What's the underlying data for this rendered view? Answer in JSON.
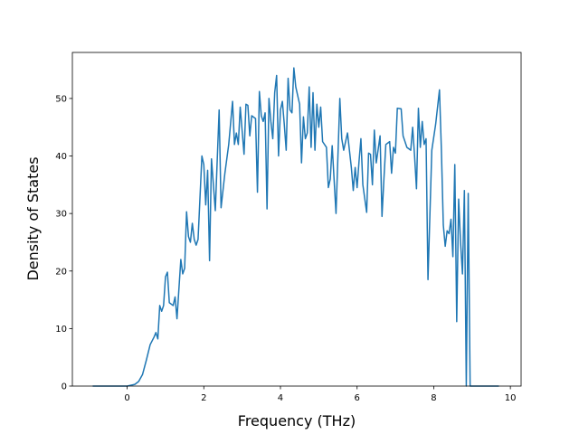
{
  "chart_data": {
    "type": "line",
    "x_label": "Frequency (THz)",
    "y_label": "Density of States",
    "xlim": [
      -1.43,
      10.28
    ],
    "ylim": [
      0,
      58
    ],
    "xticks": [
      0,
      2,
      4,
      6,
      8,
      10
    ],
    "yticks": [
      0,
      10,
      20,
      30,
      40,
      50
    ],
    "series": [
      {
        "color": "#1f77b4",
        "x": [
          -0.9,
          0,
          0.2,
          0.3,
          0.4,
          0.5,
          0.6,
          0.7,
          0.75,
          0.8,
          0.85,
          0.9,
          0.95,
          1.0,
          1.05,
          1.1,
          1.2,
          1.25,
          1.3,
          1.4,
          1.45,
          1.5,
          1.55,
          1.6,
          1.65,
          1.7,
          1.75,
          1.8,
          1.85,
          1.95,
          2.0,
          2.05,
          2.1,
          2.15,
          2.2,
          2.3,
          2.4,
          2.45,
          2.55,
          2.65,
          2.75,
          2.8,
          2.85,
          2.9,
          2.95,
          3.05,
          3.1,
          3.15,
          3.2,
          3.25,
          3.35,
          3.4,
          3.45,
          3.5,
          3.55,
          3.6,
          3.65,
          3.7,
          3.75,
          3.8,
          3.85,
          3.9,
          3.95,
          4.0,
          4.05,
          4.1,
          4.15,
          4.2,
          4.25,
          4.3,
          4.35,
          4.4,
          4.5,
          4.55,
          4.6,
          4.65,
          4.7,
          4.75,
          4.8,
          4.85,
          4.9,
          4.95,
          5.0,
          5.05,
          5.1,
          5.2,
          5.25,
          5.3,
          5.35,
          5.45,
          5.55,
          5.6,
          5.65,
          5.75,
          5.85,
          5.9,
          5.95,
          6.0,
          6.05,
          6.1,
          6.15,
          6.25,
          6.3,
          6.35,
          6.4,
          6.45,
          6.5,
          6.6,
          6.65,
          6.7,
          6.75,
          6.85,
          6.9,
          6.95,
          7.0,
          7.05,
          7.15,
          7.2,
          7.3,
          7.4,
          7.45,
          7.5,
          7.55,
          7.6,
          7.65,
          7.7,
          7.75,
          7.8,
          7.85,
          7.95,
          8.05,
          8.15,
          8.2,
          8.25,
          8.3,
          8.35,
          8.4,
          8.45,
          8.5,
          8.55,
          8.6,
          8.65,
          8.7,
          8.75,
          8.8,
          8.85,
          8.9,
          8.95,
          9.7
        ],
        "values": [
          0,
          0,
          0.3,
          0.8,
          2,
          4.5,
          7.2,
          8.5,
          9.3,
          8.2,
          14,
          13,
          14,
          19,
          19.8,
          14.5,
          14,
          15.5,
          11.7,
          22,
          19.5,
          20.5,
          30.3,
          26,
          25,
          28.3,
          25.5,
          24.5,
          25.5,
          40,
          38.5,
          31.5,
          37.5,
          21.8,
          39.5,
          30.5,
          48,
          31,
          37,
          42,
          49.5,
          42,
          44,
          42,
          48.5,
          40.3,
          49,
          48.8,
          43.5,
          47,
          46.5,
          33.7,
          51.2,
          47,
          46,
          47.5,
          30.8,
          50,
          46,
          43,
          51,
          54,
          40,
          48,
          49.5,
          45.5,
          41,
          53.5,
          48,
          47.5,
          55.3,
          52,
          49,
          38.8,
          46.8,
          43,
          44,
          52,
          41.5,
          51,
          41,
          49,
          45,
          48.5,
          42.5,
          41.5,
          34.5,
          36,
          41.8,
          30,
          50,
          43,
          41,
          44,
          38,
          34,
          38,
          34.5,
          39,
          43,
          35,
          30.2,
          40.5,
          40.3,
          35,
          44.5,
          38.8,
          43.5,
          29.5,
          36,
          42,
          42.5,
          37,
          41.5,
          40.5,
          48.3,
          48.2,
          43.5,
          41.5,
          41,
          45,
          40,
          34.3,
          48.3,
          41.5,
          46,
          42,
          43,
          18.5,
          41,
          45.5,
          51.5,
          41,
          28,
          24.3,
          27,
          26.5,
          29,
          22.5,
          38.5,
          11.2,
          32.5,
          25,
          19.5,
          34,
          0,
          33.5,
          0,
          0
        ]
      }
    ]
  }
}
